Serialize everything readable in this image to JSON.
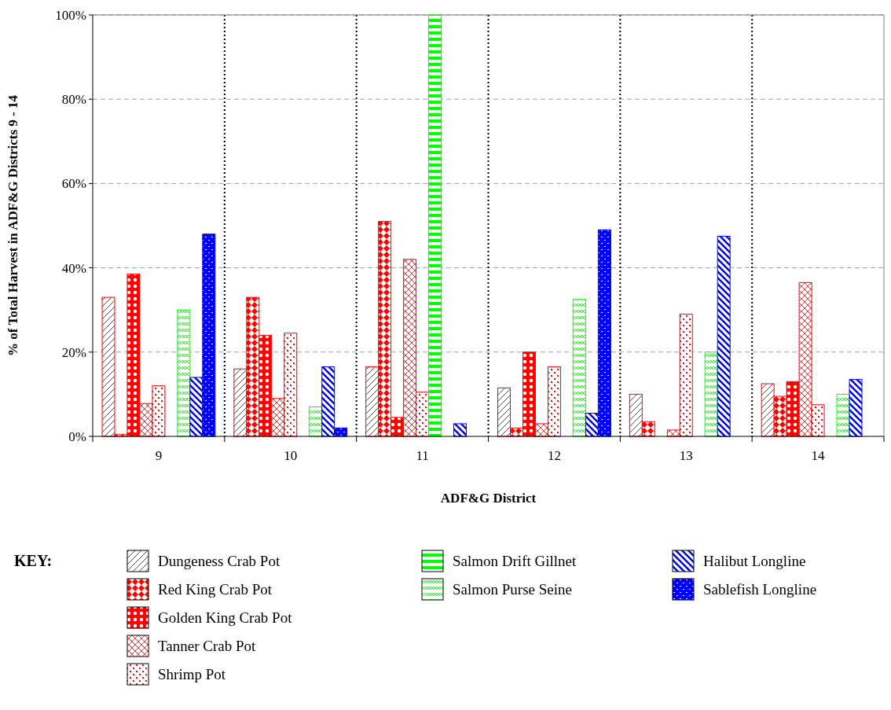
{
  "chart_data": {
    "type": "bar",
    "xlabel": "ADF&G District",
    "ylabel": "% of Total Harvest in ADF&G Districts 9 - 14",
    "legend_title": "KEY:",
    "legend": "bottom",
    "grid": true,
    "categories": [
      "9",
      "10",
      "11",
      "12",
      "13",
      "14"
    ],
    "ylim": [
      0,
      100
    ],
    "yticks": [
      {
        "value": 0,
        "label": "0%"
      },
      {
        "value": 20,
        "label": "20%"
      },
      {
        "value": 40,
        "label": "40%"
      },
      {
        "value": 60,
        "label": "60%"
      },
      {
        "value": 80,
        "label": "80%"
      },
      {
        "value": 100,
        "label": "100%"
      }
    ],
    "series": [
      {
        "name": "Dungeness Crab Pot",
        "color": "#ff0000",
        "values": [
          33,
          16,
          16.5,
          11.5,
          10,
          12.5
        ]
      },
      {
        "name": "Red King Crab Pot",
        "color": "#ff0000",
        "values": [
          0.5,
          33,
          51,
          2,
          3.5,
          9.5
        ]
      },
      {
        "name": "Golden King Crab Pot",
        "color": "#ff0000",
        "values": [
          38.5,
          24,
          4.5,
          20,
          null,
          13
        ]
      },
      {
        "name": "Tanner Crab Pot",
        "color": "#ff0000",
        "values": [
          7.8,
          9,
          42,
          3,
          1.5,
          36.5
        ]
      },
      {
        "name": "Shrimp Pot",
        "color": "#ff0000",
        "values": [
          12,
          24.5,
          10.5,
          16.5,
          29,
          7.5
        ]
      },
      {
        "name": "Salmon Drift Gillnet",
        "color": "#00ff00",
        "values": [
          null,
          null,
          100,
          null,
          null,
          null
        ]
      },
      {
        "name": "Salmon Purse Seine",
        "color": "#00ff00",
        "values": [
          30,
          7,
          null,
          32.5,
          20,
          10
        ]
      },
      {
        "name": "Halibut Longline",
        "color": "#0000ff",
        "values": [
          14,
          16.5,
          3,
          5.5,
          47.5,
          13.5
        ]
      },
      {
        "name": "Sablefish Longline",
        "color": "#0000ff",
        "values": [
          48,
          2,
          null,
          49,
          null,
          null
        ]
      }
    ]
  }
}
